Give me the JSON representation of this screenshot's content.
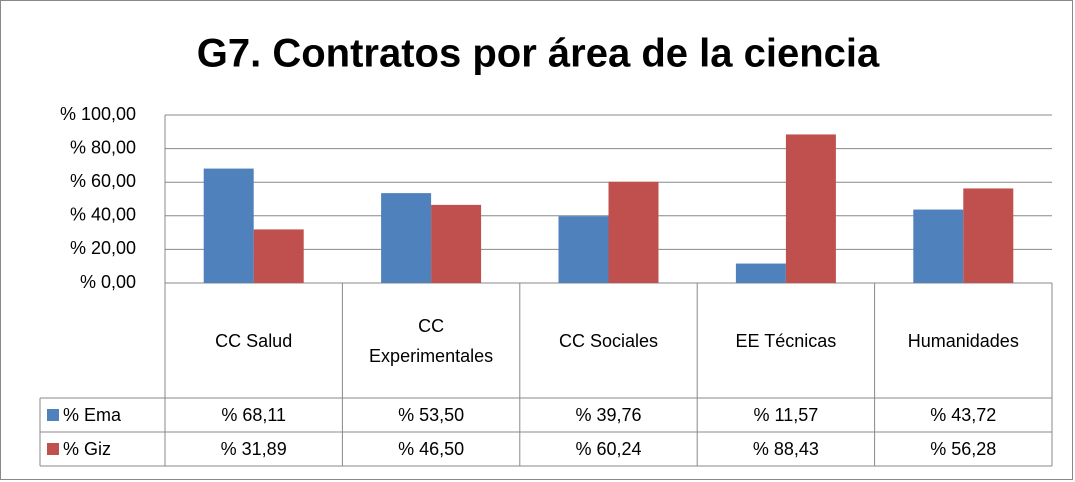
{
  "chart_data": {
    "type": "bar",
    "title": "G7. Contratos por área de la ciencia",
    "categories": [
      "CC Salud",
      "CC Experimentales",
      "CC Sociales",
      "EE Técnicas",
      "Humanidades"
    ],
    "series": [
      {
        "name": "% Ema",
        "color": "#4f81bd",
        "values": [
          68.11,
          53.5,
          39.76,
          11.57,
          43.72
        ],
        "value_labels": [
          "% 68,11",
          "% 53,50",
          "% 39,76",
          "% 11,57",
          "% 43,72"
        ]
      },
      {
        "name": "% Giz",
        "color": "#c0504d",
        "values": [
          31.89,
          46.5,
          60.24,
          88.43,
          56.28
        ],
        "value_labels": [
          "% 31,89",
          "% 46,50",
          "% 60,24",
          "% 88,43",
          "% 56,28"
        ]
      }
    ],
    "ylim": [
      0,
      100
    ],
    "yticks": [
      {
        "value": 0,
        "label": "% 0,00"
      },
      {
        "value": 20,
        "label": "% 20,00"
      },
      {
        "value": 40,
        "label": "% 40,00"
      },
      {
        "value": 60,
        "label": "% 60,00"
      },
      {
        "value": 80,
        "label": "% 80,00"
      },
      {
        "value": 100,
        "label": "% 100,00"
      }
    ],
    "grid": true,
    "data_table": true
  }
}
